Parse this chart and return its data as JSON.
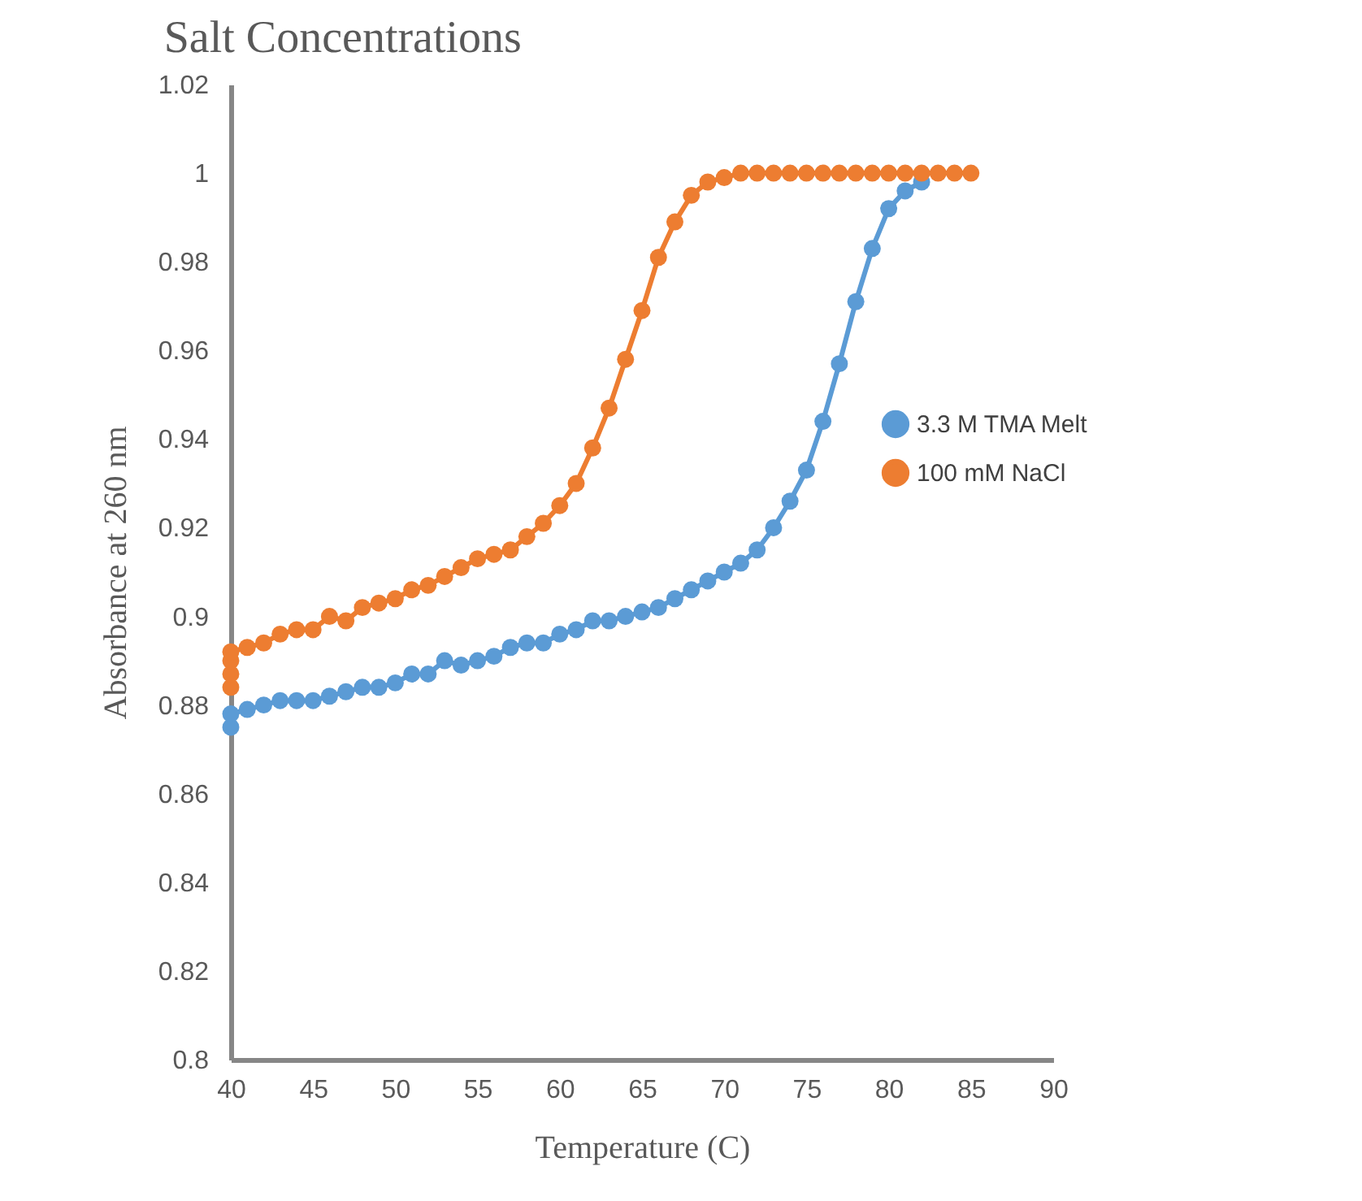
{
  "chart_data": {
    "type": "line",
    "title": "Salt Concentrations",
    "xlabel": "Temperature (C)",
    "ylabel": "Absorbance at 260 nm",
    "xlim": [
      40,
      90
    ],
    "xticks": [
      40,
      45,
      50,
      55,
      60,
      65,
      70,
      75,
      80,
      85,
      90
    ],
    "ylim": [
      0.8,
      1.02
    ],
    "yticks": [
      0.8,
      0.82,
      0.84,
      0.86,
      0.88,
      0.9,
      0.92,
      0.94,
      0.96,
      0.98,
      1,
      1.02
    ],
    "grid": false,
    "legend": "right",
    "marker": "circle",
    "line_style": "solid",
    "series": [
      {
        "name": "3.3 M TMA Melt",
        "color": "#5b9bd5",
        "x": [
          40,
          40,
          41,
          42,
          43,
          44,
          45,
          46,
          47,
          48,
          49,
          50,
          51,
          52,
          53,
          54,
          55,
          56,
          57,
          58,
          59,
          60,
          61,
          62,
          63,
          64,
          65,
          66,
          67,
          68,
          69,
          70,
          71,
          72,
          73,
          74,
          75,
          76,
          77,
          78,
          79,
          80,
          81,
          82
        ],
        "values": [
          0.875,
          0.878,
          0.879,
          0.88,
          0.881,
          0.881,
          0.881,
          0.882,
          0.883,
          0.884,
          0.884,
          0.885,
          0.887,
          0.887,
          0.89,
          0.889,
          0.89,
          0.891,
          0.893,
          0.894,
          0.894,
          0.896,
          0.897,
          0.899,
          0.899,
          0.9,
          0.901,
          0.902,
          0.904,
          0.906,
          0.908,
          0.91,
          0.912,
          0.915,
          0.92,
          0.926,
          0.933,
          0.944,
          0.957,
          0.971,
          0.983,
          0.992,
          0.996,
          0.998
        ]
      },
      {
        "name": "100 mM NaCl",
        "color": "#ed7d31",
        "x": [
          40,
          40,
          40,
          40,
          41,
          42,
          43,
          44,
          45,
          46,
          47,
          48,
          49,
          50,
          51,
          52,
          53,
          54,
          55,
          56,
          57,
          58,
          59,
          60,
          61,
          62,
          63,
          64,
          65,
          66,
          67,
          68,
          69,
          70,
          71,
          72,
          73,
          74,
          75,
          76,
          77,
          78,
          79,
          80,
          81,
          82,
          83,
          84,
          85
        ],
        "values": [
          0.884,
          0.887,
          0.89,
          0.892,
          0.893,
          0.894,
          0.896,
          0.897,
          0.897,
          0.9,
          0.899,
          0.902,
          0.903,
          0.904,
          0.906,
          0.907,
          0.909,
          0.911,
          0.913,
          0.914,
          0.915,
          0.918,
          0.921,
          0.925,
          0.93,
          0.938,
          0.947,
          0.958,
          0.969,
          0.981,
          0.989,
          0.995,
          0.998,
          0.999,
          1.0,
          1.0,
          1.0,
          1.0,
          1.0,
          1.0,
          1.0,
          1.0,
          1.0,
          1.0,
          1.0,
          1.0,
          1.0,
          1.0,
          1.0
        ]
      }
    ]
  }
}
